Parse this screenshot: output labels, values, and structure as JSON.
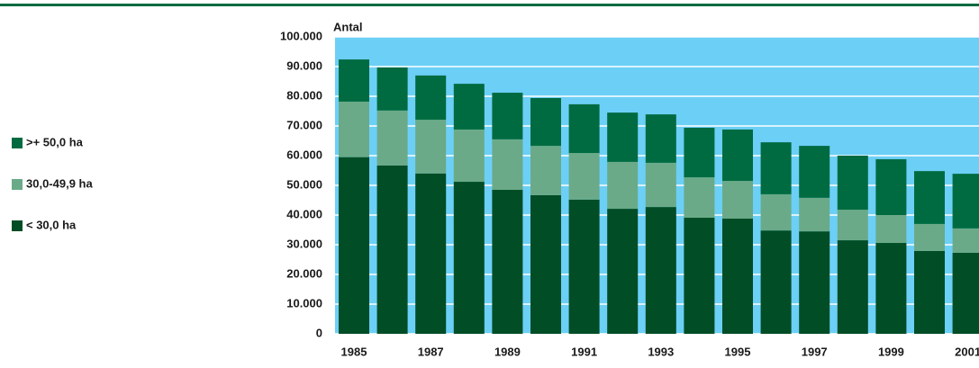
{
  "chart_data": {
    "type": "stacked_bar",
    "y_label": "Antal",
    "categories": [
      "1985",
      null,
      "1987",
      null,
      "1989",
      null,
      "1991",
      null,
      "1993",
      null,
      "1995",
      null,
      "1997",
      null,
      "1999",
      null,
      "2001"
    ],
    "series": [
      {
        "name": "< 30,0 ha",
        "color": "#004d26",
        "values": [
          59500,
          56700,
          54000,
          51200,
          48500,
          46700,
          45200,
          42100,
          42700,
          39100,
          38800,
          34800,
          34500,
          31500,
          30600,
          27900,
          27300
        ]
      },
      {
        "name": "30,0-49,9 ha",
        "color": "#6aaa88",
        "values": [
          18700,
          18500,
          18100,
          17600,
          17000,
          16600,
          15700,
          15800,
          14900,
          13600,
          12700,
          12200,
          11300,
          10300,
          9400,
          9100,
          8200
        ]
      },
      {
        "name": ">+ 50,0 ha",
        "color": "#006b40",
        "values": [
          14200,
          14500,
          14900,
          15400,
          15700,
          16100,
          16400,
          16600,
          16300,
          16700,
          17300,
          17500,
          17500,
          18200,
          18800,
          17800,
          18400
        ]
      }
    ],
    "ylim": [
      0,
      100000
    ],
    "yticks": [
      0,
      {
        "value": 10000,
        "label": "10.000"
      },
      {
        "value": 20000,
        "label": "20.000"
      },
      {
        "value": 30000,
        "label": "30.000"
      },
      {
        "value": 40000,
        "label": "40.000"
      },
      {
        "value": 50000,
        "label": "50.000"
      },
      {
        "value": 60000,
        "label": "60.000"
      },
      {
        "value": 70000,
        "label": "70.000"
      },
      {
        "value": 80000,
        "label": "80.000"
      },
      {
        "value": 90000,
        "label": "90.000"
      },
      {
        "value": 100000,
        "label": "100.000"
      }
    ],
    "grid": true,
    "plot_background": "#6ccff6",
    "legend": "left"
  }
}
